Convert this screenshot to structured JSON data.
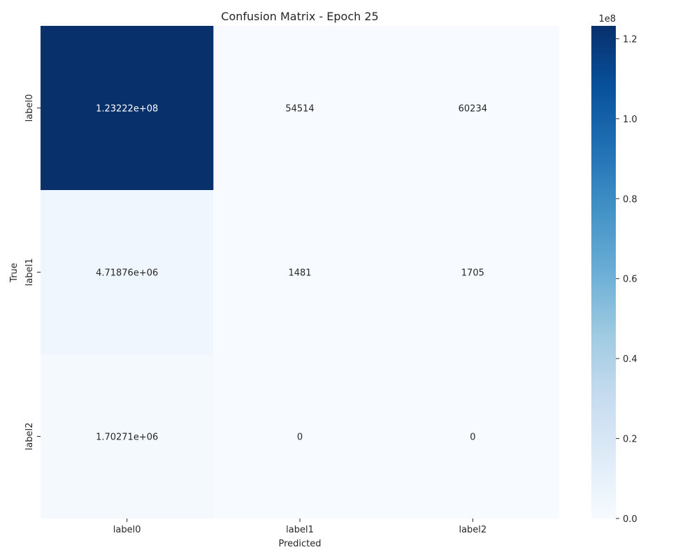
{
  "chart_data": {
    "type": "heatmap",
    "title": "Confusion Matrix - Epoch 25",
    "xlabel": "Predicted",
    "ylabel": "True",
    "x_categories": [
      "label0",
      "label1",
      "label2"
    ],
    "y_categories": [
      "label0",
      "label1",
      "label2"
    ],
    "values": [
      [
        123222000,
        54514,
        60234
      ],
      [
        4718760,
        1481,
        1705
      ],
      [
        1702710,
        0,
        0
      ]
    ],
    "cell_labels": [
      [
        "1.23222e+08",
        "54514",
        "60234"
      ],
      [
        "4.71876e+06",
        "1481",
        "1705"
      ],
      [
        "1.70271e+06",
        "0",
        "0"
      ]
    ],
    "colormap": "Blues",
    "color_range": [
      0,
      123222000
    ],
    "colorbar": {
      "multiplier_label": "1e8",
      "ticks": [
        0.0,
        0.2,
        0.4,
        0.6,
        0.8,
        1.0,
        1.2
      ],
      "tick_labels": [
        "0.0",
        "0.2",
        "0.4",
        "0.6",
        "0.8",
        "1.0",
        "1.2"
      ],
      "tick_scale": 100000000
    },
    "grid": false,
    "legend": "none"
  }
}
